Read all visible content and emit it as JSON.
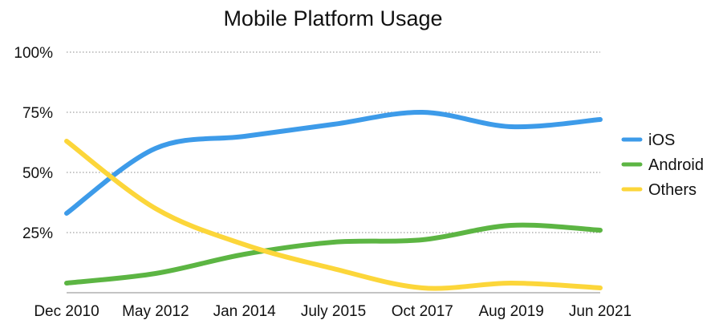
{
  "chart_data": {
    "type": "line",
    "title": "Mobile Platform Usage",
    "xlabel": "",
    "ylabel": "",
    "categories": [
      "Dec 2010",
      "May 2012",
      "Jan 2014",
      "July 2015",
      "Oct 2017",
      "Aug 2019",
      "Jun 2021"
    ],
    "y_ticks": [
      "100%",
      "75%",
      "50%",
      "25%"
    ],
    "ylim": [
      0,
      100
    ],
    "grid": true,
    "legend_position": "right",
    "series": [
      {
        "name": "iOS",
        "color": "#3d9be9",
        "values": [
          33,
          60,
          65,
          70,
          75,
          69,
          72
        ]
      },
      {
        "name": "Android",
        "color": "#5cb543",
        "values": [
          4,
          8,
          16,
          21,
          22,
          28,
          26
        ]
      },
      {
        "name": "Others",
        "color": "#fcd63a",
        "values": [
          63,
          35,
          20,
          10,
          2,
          4,
          2
        ]
      }
    ]
  }
}
